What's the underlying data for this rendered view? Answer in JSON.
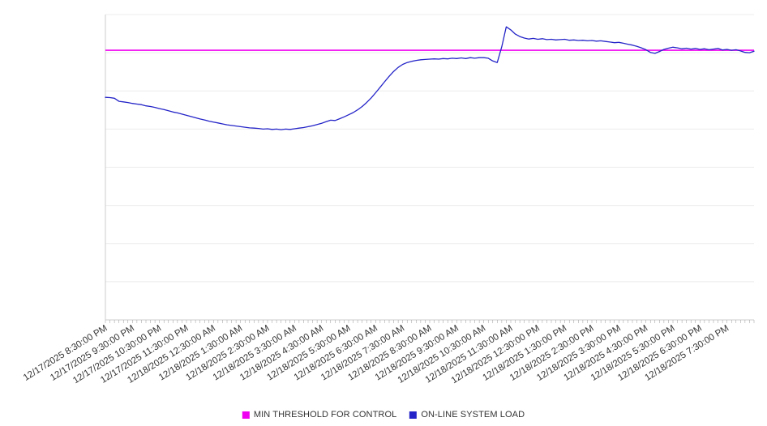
{
  "chart_data": {
    "type": "line",
    "title": "",
    "xlabel": "",
    "ylabel": "",
    "ylim": [
      0,
      100
    ],
    "grid": true,
    "grid_intervals": 8,
    "legend_position": "bottom",
    "points_per_label": 6,
    "x_labels": [
      "12/17/2025 8:30:00 PM",
      "12/17/2025 9:30:00 PM",
      "12/17/2025 10:30:00 PM",
      "12/17/2025 11:30:00 PM",
      "12/18/2025 12:30:00 AM",
      "12/18/2025 1:30:00 AM",
      "12/18/2025 2:30:00 AM",
      "12/18/2025 3:30:00 AM",
      "12/18/2025 4:30:00 AM",
      "12/18/2025 5:30:00 AM",
      "12/18/2025 6:30:00 AM",
      "12/18/2025 7:30:00 AM",
      "12/18/2025 8:30:00 AM",
      "12/18/2025 9:30:00 AM",
      "12/18/2025 10:30:00 AM",
      "12/18/2025 11:30:00 AM",
      "12/18/2025 12:30:00 PM",
      "12/18/2025 1:30:00 PM",
      "12/18/2025 2:30:00 PM",
      "12/18/2025 3:30:00 PM",
      "12/18/2025 4:30:00 PM",
      "12/18/2025 5:30:00 PM",
      "12/18/2025 6:30:00 PM",
      "12/18/2025 7:30:00 PM"
    ],
    "series": [
      {
        "name": "MIN THRESHOLD FOR CONTROL",
        "type": "threshold",
        "color": "#f000f0",
        "value": 88.3
      },
      {
        "name": "ON-LINE SYSTEM LOAD",
        "type": "line",
        "color": "#2424c8",
        "values": [
          72.9,
          72.8,
          72.6,
          71.6,
          71.4,
          71.2,
          70.9,
          70.7,
          70.5,
          70.1,
          69.9,
          69.6,
          69.2,
          68.9,
          68.5,
          68.1,
          67.8,
          67.4,
          67.0,
          66.6,
          66.2,
          65.8,
          65.5,
          65.1,
          64.8,
          64.5,
          64.2,
          63.9,
          63.7,
          63.5,
          63.3,
          63.1,
          62.9,
          62.8,
          62.7,
          62.5,
          62.6,
          62.4,
          62.5,
          62.3,
          62.5,
          62.4,
          62.6,
          62.8,
          63.0,
          63.3,
          63.6,
          64.0,
          64.4,
          64.9,
          65.4,
          65.3,
          65.9,
          66.5,
          67.2,
          67.9,
          68.8,
          69.9,
          71.2,
          72.7,
          74.4,
          76.2,
          78.0,
          79.8,
          81.4,
          82.7,
          83.7,
          84.3,
          84.7,
          85.0,
          85.2,
          85.3,
          85.4,
          85.5,
          85.4,
          85.6,
          85.5,
          85.7,
          85.6,
          85.8,
          85.6,
          85.9,
          85.7,
          85.9,
          85.9,
          85.7,
          84.8,
          84.3,
          89.5,
          96.0,
          95.0,
          93.6,
          92.8,
          92.3,
          92.0,
          92.2,
          91.9,
          92.1,
          91.8,
          91.9,
          91.7,
          91.8,
          91.9,
          91.6,
          91.7,
          91.5,
          91.6,
          91.4,
          91.5,
          91.3,
          91.4,
          91.2,
          91.0,
          90.8,
          90.9,
          90.6,
          90.3,
          90.0,
          89.6,
          89.1,
          88.5,
          87.6,
          87.3,
          87.9,
          88.6,
          89.0,
          89.3,
          89.1,
          88.8,
          89.0,
          88.7,
          88.9,
          88.6,
          88.8,
          88.5,
          88.7,
          88.9,
          88.4,
          88.6,
          88.3,
          88.5,
          88.1,
          87.6,
          87.5,
          88.0
        ]
      }
    ]
  },
  "legend": {
    "items": [
      {
        "label": "MIN THRESHOLD FOR CONTROL",
        "color": "#f000f0"
      },
      {
        "label": "ON-LINE SYSTEM LOAD",
        "color": "#2424c8"
      }
    ]
  },
  "colors": {
    "grid": "#ececec",
    "axis": "#cccccc",
    "tick": "#999999",
    "label_text": "#333333"
  }
}
